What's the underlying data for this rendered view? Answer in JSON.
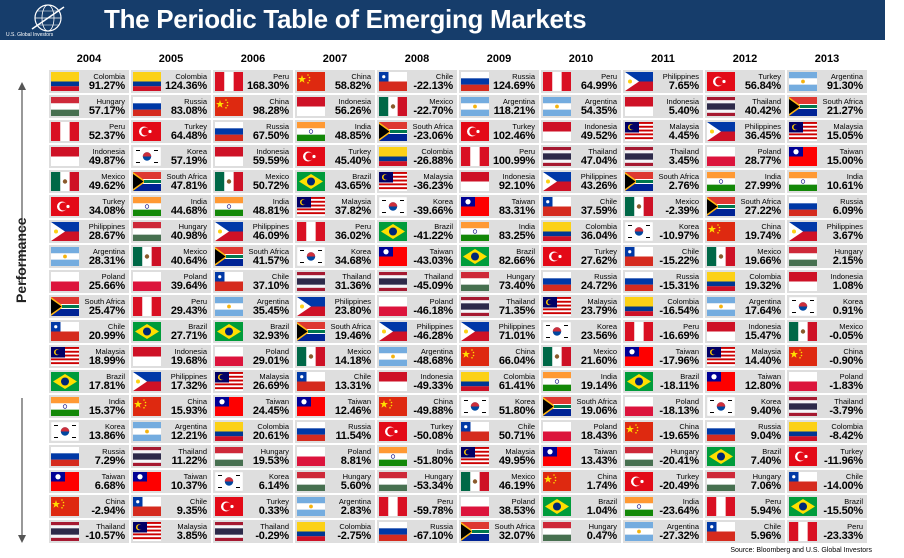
{
  "header": {
    "title": "The Periodic Table of Emerging Markets",
    "logo_text": "U.S. Global Investors",
    "bg_color": "#163d6b"
  },
  "axis": {
    "label": "Performance",
    "arrow_icon": "double-arrow-vertical-icon"
  },
  "source": "Source: Bloomberg and U.S. Global Investors",
  "chart_data": {
    "type": "table",
    "title": "The Periodic Table of Emerging Markets",
    "ylabel": "Performance",
    "years": [
      "2004",
      "2005",
      "2006",
      "2007",
      "2008",
      "2009",
      "2010",
      "2011",
      "2012",
      "2013"
    ],
    "columns": [
      {
        "year": "2004",
        "cells": [
          {
            "country": "Colombia",
            "value": "91.27%"
          },
          {
            "country": "Hungary",
            "value": "57.17%"
          },
          {
            "country": "Peru",
            "value": "52.37%"
          },
          {
            "country": "Indonesia",
            "value": "49.87%"
          },
          {
            "country": "Mexico",
            "value": "49.62%"
          },
          {
            "country": "Turkey",
            "value": "34.08%"
          },
          {
            "country": "Philippines",
            "value": "28.67%"
          },
          {
            "country": "Argentina",
            "value": "28.31%"
          },
          {
            "country": "Poland",
            "value": "25.66%"
          },
          {
            "country": "South Africa",
            "value": "25.47%"
          },
          {
            "country": "Chile",
            "value": "20.99%"
          },
          {
            "country": "Malaysia",
            "value": "18.99%"
          },
          {
            "country": "Brazil",
            "value": "17.81%"
          },
          {
            "country": "India",
            "value": "15.37%"
          },
          {
            "country": "Korea",
            "value": "13.86%"
          },
          {
            "country": "Russia",
            "value": "7.29%"
          },
          {
            "country": "Taiwan",
            "value": "6.68%"
          },
          {
            "country": "China",
            "value": "-2.94%"
          },
          {
            "country": "Thailand",
            "value": "-10.57%"
          }
        ]
      },
      {
        "year": "2005",
        "cells": [
          {
            "country": "Colombia",
            "value": "124.36%"
          },
          {
            "country": "Russia",
            "value": "83.08%"
          },
          {
            "country": "Turkey",
            "value": "64.48%"
          },
          {
            "country": "Korea",
            "value": "57.19%"
          },
          {
            "country": "South Africa",
            "value": "47.81%"
          },
          {
            "country": "India",
            "value": "44.68%"
          },
          {
            "country": "Hungary",
            "value": "40.98%"
          },
          {
            "country": "Mexico",
            "value": "40.64%"
          },
          {
            "country": "Poland",
            "value": "39.64%"
          },
          {
            "country": "Peru",
            "value": "29.43%"
          },
          {
            "country": "Brazil",
            "value": "27.71%"
          },
          {
            "country": "Indonesia",
            "value": "19.68%"
          },
          {
            "country": "Philippines",
            "value": "17.32%"
          },
          {
            "country": "China",
            "value": "15.93%"
          },
          {
            "country": "Argentina",
            "value": "12.21%"
          },
          {
            "country": "Thailand",
            "value": "11.22%"
          },
          {
            "country": "Taiwan",
            "value": "10.37%"
          },
          {
            "country": "Chile",
            "value": "9.35%"
          },
          {
            "country": "Malaysia",
            "value": "3.85%"
          }
        ]
      },
      {
        "year": "2006",
        "cells": [
          {
            "country": "Peru",
            "value": "168.30%"
          },
          {
            "country": "China",
            "value": "98.28%"
          },
          {
            "country": "Russia",
            "value": "67.50%"
          },
          {
            "country": "Indonesia",
            "value": "59.59%"
          },
          {
            "country": "Mexico",
            "value": "50.72%"
          },
          {
            "country": "India",
            "value": "48.81%"
          },
          {
            "country": "Philippines",
            "value": "46.09%"
          },
          {
            "country": "South Africa",
            "value": "41.57%"
          },
          {
            "country": "Chile",
            "value": "37.10%"
          },
          {
            "country": "Argentina",
            "value": "35.45%"
          },
          {
            "country": "Brazil",
            "value": "32.93%"
          },
          {
            "country": "Poland",
            "value": "29.01%"
          },
          {
            "country": "Malaysia",
            "value": "26.69%"
          },
          {
            "country": "Taiwan",
            "value": "24.45%"
          },
          {
            "country": "Colombia",
            "value": "20.61%"
          },
          {
            "country": "Hungary",
            "value": "19.53%"
          },
          {
            "country": "Korea",
            "value": "6.14%"
          },
          {
            "country": "Turkey",
            "value": "0.33%"
          },
          {
            "country": "Thailand",
            "value": "-0.29%"
          }
        ]
      },
      {
        "year": "2007",
        "cells": [
          {
            "country": "China",
            "value": "58.82%"
          },
          {
            "country": "Indonesia",
            "value": "56.26%"
          },
          {
            "country": "India",
            "value": "48.85%"
          },
          {
            "country": "Turkey",
            "value": "45.40%"
          },
          {
            "country": "Brazil",
            "value": "43.65%"
          },
          {
            "country": "Malaysia",
            "value": "37.82%"
          },
          {
            "country": "Peru",
            "value": "36.02%"
          },
          {
            "country": "Korea",
            "value": "34.68%"
          },
          {
            "country": "Thailand",
            "value": "31.36%"
          },
          {
            "country": "Philippines",
            "value": "23.80%"
          },
          {
            "country": "South Africa",
            "value": "19.46%"
          },
          {
            "country": "Mexico",
            "value": "14.18%"
          },
          {
            "country": "Chile",
            "value": "13.31%"
          },
          {
            "country": "Taiwan",
            "value": "12.46%"
          },
          {
            "country": "Russia",
            "value": "11.54%"
          },
          {
            "country": "Poland",
            "value": "8.81%"
          },
          {
            "country": "Hungary",
            "value": "5.60%"
          },
          {
            "country": "Argentina",
            "value": "2.83%"
          },
          {
            "country": "Colombia",
            "value": "-2.75%"
          }
        ]
      },
      {
        "year": "2008",
        "cells": [
          {
            "country": "Chile",
            "value": "-22.13%"
          },
          {
            "country": "Mexico",
            "value": "-22.70%"
          },
          {
            "country": "South Africa",
            "value": "-23.06%"
          },
          {
            "country": "Colombia",
            "value": "-26.88%"
          },
          {
            "country": "Malaysia",
            "value": "-36.23%"
          },
          {
            "country": "Korea",
            "value": "-39.66%"
          },
          {
            "country": "Brazil",
            "value": "-41.22%"
          },
          {
            "country": "Taiwan",
            "value": "-43.03%"
          },
          {
            "country": "Thailand",
            "value": "-45.09%"
          },
          {
            "country": "Poland",
            "value": "-46.18%"
          },
          {
            "country": "Philippines",
            "value": "-46.28%"
          },
          {
            "country": "Argentina",
            "value": "-48.68%"
          },
          {
            "country": "Indonesia",
            "value": "-49.33%"
          },
          {
            "country": "China",
            "value": "-49.88%"
          },
          {
            "country": "Turkey",
            "value": "-50.08%"
          },
          {
            "country": "India",
            "value": "-51.80%"
          },
          {
            "country": "Hungary",
            "value": "-53.34%"
          },
          {
            "country": "Peru",
            "value": "-59.78%"
          },
          {
            "country": "Russia",
            "value": "-67.10%"
          }
        ]
      },
      {
        "year": "2009",
        "cells": [
          {
            "country": "Russia",
            "value": "124.69%"
          },
          {
            "country": "Argentina",
            "value": "118.21%"
          },
          {
            "country": "Turkey",
            "value": "102.46%"
          },
          {
            "country": "Peru",
            "value": "100.99%"
          },
          {
            "country": "Indonesia",
            "value": "92.10%"
          },
          {
            "country": "Taiwan",
            "value": "83.31%"
          },
          {
            "country": "India",
            "value": "83.25%"
          },
          {
            "country": "Brazil",
            "value": "82.66%"
          },
          {
            "country": "Hungary",
            "value": "73.40%"
          },
          {
            "country": "Thailand",
            "value": "71.35%"
          },
          {
            "country": "Philippines",
            "value": "71.01%"
          },
          {
            "country": "China",
            "value": "66.04%"
          },
          {
            "country": "Colombia",
            "value": "61.41%"
          },
          {
            "country": "Korea",
            "value": "51.80%"
          },
          {
            "country": "Chile",
            "value": "50.71%"
          },
          {
            "country": "Malaysia",
            "value": "49.95%"
          },
          {
            "country": "Mexico",
            "value": "46.19%"
          },
          {
            "country": "Poland",
            "value": "38.53%"
          },
          {
            "country": "South Africa",
            "value": "32.07%"
          }
        ]
      },
      {
        "year": "2010",
        "cells": [
          {
            "country": "Peru",
            "value": "64.99%"
          },
          {
            "country": "Argentina",
            "value": "54.35%"
          },
          {
            "country": "Indonesia",
            "value": "49.52%"
          },
          {
            "country": "Thailand",
            "value": "47.04%"
          },
          {
            "country": "Philippines",
            "value": "43.26%"
          },
          {
            "country": "Chile",
            "value": "37.59%"
          },
          {
            "country": "Colombia",
            "value": "36.04%"
          },
          {
            "country": "Turkey",
            "value": "27.62%"
          },
          {
            "country": "Russia",
            "value": "24.72%"
          },
          {
            "country": "Malaysia",
            "value": "23.79%"
          },
          {
            "country": "Korea",
            "value": "23.56%"
          },
          {
            "country": "Mexico",
            "value": "21.60%"
          },
          {
            "country": "India",
            "value": "19.14%"
          },
          {
            "country": "South Africa",
            "value": "19.06%"
          },
          {
            "country": "Poland",
            "value": "18.43%"
          },
          {
            "country": "Taiwan",
            "value": "13.43%"
          },
          {
            "country": "China",
            "value": "1.74%"
          },
          {
            "country": "Brazil",
            "value": "1.04%"
          },
          {
            "country": "Hungary",
            "value": "0.47%"
          }
        ]
      },
      {
        "year": "2011",
        "cells": [
          {
            "country": "Philippines",
            "value": "7.65%"
          },
          {
            "country": "Indonesia",
            "value": "5.40%"
          },
          {
            "country": "Malaysia",
            "value": "4.45%"
          },
          {
            "country": "Thailand",
            "value": "3.45%"
          },
          {
            "country": "South Africa",
            "value": "2.76%"
          },
          {
            "country": "Mexico",
            "value": "-2.39%"
          },
          {
            "country": "Korea",
            "value": "-10.97%"
          },
          {
            "country": "Chile",
            "value": "-15.22%"
          },
          {
            "country": "Russia",
            "value": "-15.31%"
          },
          {
            "country": "Colombia",
            "value": "-16.54%"
          },
          {
            "country": "Peru",
            "value": "-16.69%"
          },
          {
            "country": "Taiwan",
            "value": "-17.96%"
          },
          {
            "country": "Brazil",
            "value": "-18.11%"
          },
          {
            "country": "Poland",
            "value": "-18.13%"
          },
          {
            "country": "China",
            "value": "-19.65%"
          },
          {
            "country": "Hungary",
            "value": "-20.41%"
          },
          {
            "country": "Turkey",
            "value": "-20.49%"
          },
          {
            "country": "India",
            "value": "-23.64%"
          },
          {
            "country": "Argentina",
            "value": "-27.32%"
          }
        ]
      },
      {
        "year": "2012",
        "cells": [
          {
            "country": "Turkey",
            "value": "56.84%"
          },
          {
            "country": "Thailand",
            "value": "40.42%"
          },
          {
            "country": "Philippines",
            "value": "36.45%"
          },
          {
            "country": "Poland",
            "value": "28.77%"
          },
          {
            "country": "India",
            "value": "27.99%"
          },
          {
            "country": "South Africa",
            "value": "27.22%"
          },
          {
            "country": "China",
            "value": "19.74%"
          },
          {
            "country": "Mexico",
            "value": "19.66%"
          },
          {
            "country": "Colombia",
            "value": "19.32%"
          },
          {
            "country": "Argentina",
            "value": "17.64%"
          },
          {
            "country": "Indonesia",
            "value": "15.47%"
          },
          {
            "country": "Malaysia",
            "value": "14.40%"
          },
          {
            "country": "Taiwan",
            "value": "12.80%"
          },
          {
            "country": "Korea",
            "value": "9.40%"
          },
          {
            "country": "Russia",
            "value": "9.04%"
          },
          {
            "country": "Brazil",
            "value": "7.40%"
          },
          {
            "country": "Hungary",
            "value": "7.06%"
          },
          {
            "country": "Peru",
            "value": "5.94%"
          },
          {
            "country": "Chile",
            "value": "5.96%"
          }
        ]
      },
      {
        "year": "2013",
        "cells": [
          {
            "country": "Argentina",
            "value": "91.30%"
          },
          {
            "country": "South Africa",
            "value": "21.27%"
          },
          {
            "country": "Malaysia",
            "value": "15.05%"
          },
          {
            "country": "Taiwan",
            "value": "15.00%"
          },
          {
            "country": "India",
            "value": "10.61%"
          },
          {
            "country": "Russia",
            "value": "6.09%"
          },
          {
            "country": "Philippines",
            "value": "3.67%"
          },
          {
            "country": "Hungary",
            "value": "2.15%"
          },
          {
            "country": "Indonesia",
            "value": "1.08%"
          },
          {
            "country": "Korea",
            "value": "0.91%"
          },
          {
            "country": "Mexico",
            "value": "-0.05%"
          },
          {
            "country": "China",
            "value": "-0.90%"
          },
          {
            "country": "Poland",
            "value": "-1.83%"
          },
          {
            "country": "Thailand",
            "value": "-3.79%"
          },
          {
            "country": "Colombia",
            "value": "-8.42%"
          },
          {
            "country": "Turkey",
            "value": "-11.96%"
          },
          {
            "country": "Chile",
            "value": "-14.00%"
          },
          {
            "country": "Brazil",
            "value": "-15.50%"
          },
          {
            "country": "Peru",
            "value": "-23.33%"
          }
        ]
      }
    ]
  }
}
